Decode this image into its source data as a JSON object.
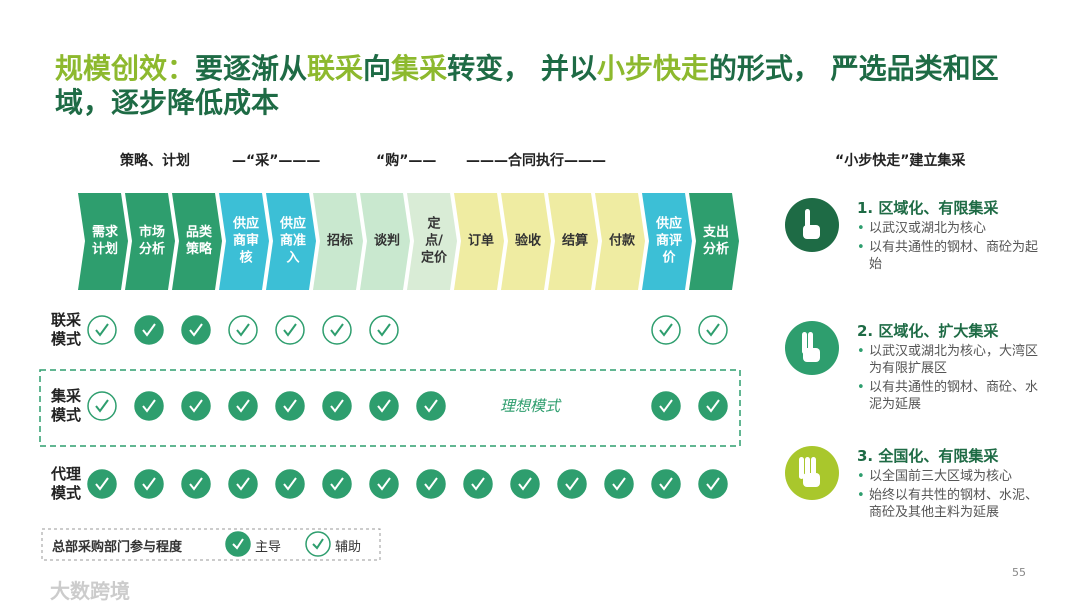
{
  "title": {
    "segments": [
      {
        "text": "规模创效：",
        "accent": true
      },
      {
        "text": "要逐渐从",
        "accent": false
      },
      {
        "text": "联采",
        "accent": true
      },
      {
        "text": "向",
        "accent": false
      },
      {
        "text": "集采",
        "accent": true
      },
      {
        "text": "转变， 并以",
        "accent": false
      },
      {
        "text": "小步快走",
        "accent": true
      },
      {
        "text": "的形式， 严选品类和区域，逐步降低成本",
        "accent": false
      }
    ]
  },
  "phases": [
    "策略、计划",
    "—“采”———",
    "“购”——",
    "———合同执行———"
  ],
  "steps": [
    {
      "label": "需求计划",
      "color": "#2e9e6e"
    },
    {
      "label": "市场分析",
      "color": "#2e9e6e"
    },
    {
      "label": "品类策略",
      "color": "#2e9e6e"
    },
    {
      "label": "供应商审核",
      "color": "#3cbfd6"
    },
    {
      "label": "供应商准入",
      "color": "#3cbfd6"
    },
    {
      "label": "招标",
      "color": "#c9e8cf"
    },
    {
      "label": "谈判",
      "color": "#c9e8cf"
    },
    {
      "label": "定点/定价",
      "color": "#d9ecd6"
    },
    {
      "label": "订单",
      "color": "#efeca2"
    },
    {
      "label": "验收",
      "color": "#efeca2"
    },
    {
      "label": "结算",
      "color": "#efeca2"
    },
    {
      "label": "付款",
      "color": "#efeca2"
    },
    {
      "label": "供应商评价",
      "color": "#3cbfd6"
    },
    {
      "label": "支出分析",
      "color": "#2e9e6e"
    }
  ],
  "rows": [
    {
      "label": "联采模式",
      "marks": [
        "aux",
        "main",
        "main",
        "aux",
        "aux",
        "aux",
        "aux",
        null,
        null,
        null,
        null,
        null,
        "aux",
        "aux"
      ]
    },
    {
      "label": "集采模式",
      "note": "理想模式",
      "marks": [
        "aux",
        "main",
        "main",
        "main",
        "main",
        "main",
        "main",
        "main",
        null,
        null,
        null,
        null,
        "main",
        "main"
      ]
    },
    {
      "label": "代理模式",
      "marks": [
        "main",
        "main",
        "main",
        "main",
        "main",
        "main",
        "main",
        "main",
        "main",
        "main",
        "main",
        "main",
        "main",
        "main"
      ]
    }
  ],
  "legend": {
    "title": "总部采购部门参与程度",
    "main": "主导",
    "aux": "辅助"
  },
  "side": {
    "heading": "“小步快走”建立集采",
    "items": [
      {
        "title": "1. 区域化、有限集采",
        "color": "#1e6b45",
        "bullets": [
          "以武汉或湖北为核心",
          "以有共通性的钢材、商砼为起始"
        ]
      },
      {
        "title": "2. 区域化、扩大集采",
        "color": "#2e9e6e",
        "bullets": [
          "以武汉或湖北为核心，大湾区为有限扩展区",
          "以有共通性的钢材、商砼、水泥为延展"
        ]
      },
      {
        "title": "3. 全国化、有限集采",
        "color": "#a9c72c",
        "bullets": [
          "以全国前三大区域为核心",
          "始终以有共性的钢材、水泥、商砼及其他主料为延展"
        ]
      }
    ]
  },
  "page_number": "55",
  "watermark": "大数跨境"
}
